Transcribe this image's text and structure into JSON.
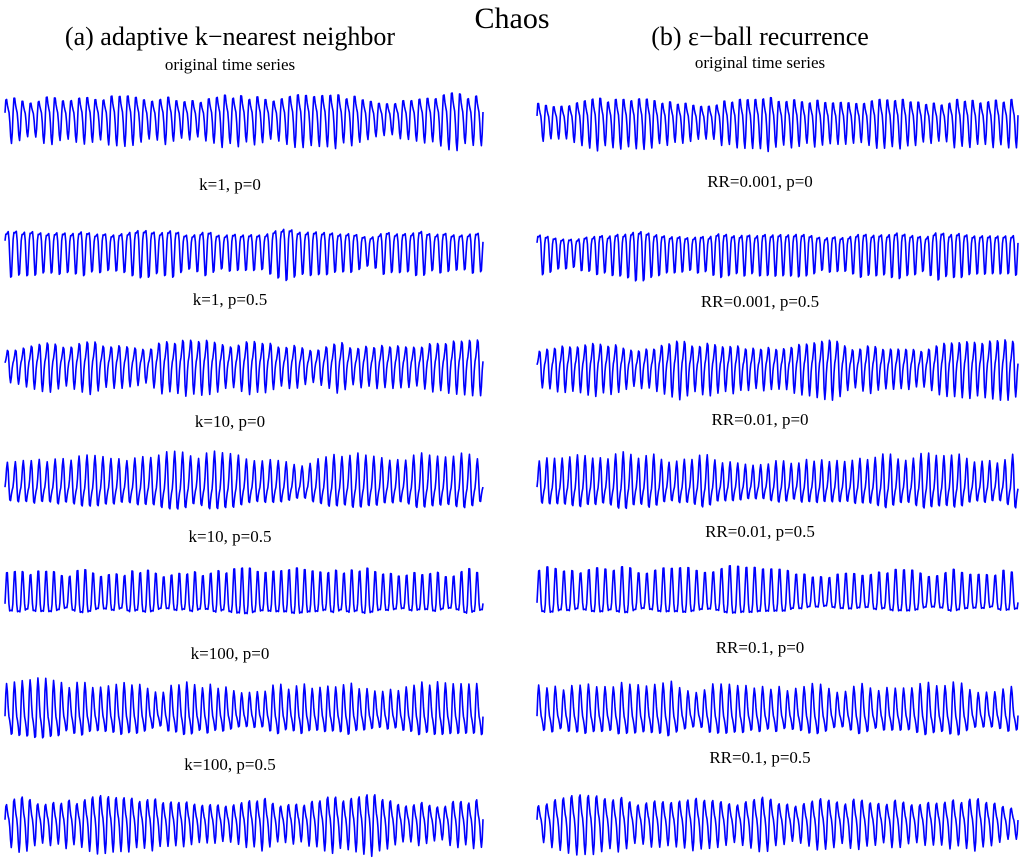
{
  "figure": {
    "title": "Chaos",
    "series_color": "#0000ff"
  },
  "columns": [
    {
      "title": "(a) adaptive k−nearest neighbor",
      "panel_labels": [
        "original time series",
        "k=1, p=0",
        "k=1, p=0.5",
        "k=10, p=0",
        "k=10, p=0.5",
        "k=100, p=0",
        "k=100, p=0.5"
      ]
    },
    {
      "title": "(b) ε−ball recurrence",
      "panel_labels": [
        "original time series",
        "RR=0.001, p=0",
        "RR=0.001, p=0.5",
        "RR=0.01, p=0",
        "RR=0.01, p=0.5",
        "RR=0.1, p=0",
        "RR=0.1, p=0.5"
      ]
    }
  ],
  "chart_data": {
    "type": "line",
    "title": "Chaos",
    "panels_per_column": 7,
    "axes_visible": false,
    "grid": false,
    "series_color": "#0000ff",
    "series": [
      {
        "column": 0,
        "label": "original time series"
      },
      {
        "column": 0,
        "label": "k=1, p=0"
      },
      {
        "column": 0,
        "label": "k=1, p=0.5"
      },
      {
        "column": 0,
        "label": "k=10, p=0"
      },
      {
        "column": 0,
        "label": "k=10, p=0.5"
      },
      {
        "column": 0,
        "label": "k=100, p=0"
      },
      {
        "column": 0,
        "label": "k=100, p=0.5"
      },
      {
        "column": 1,
        "label": "original time series"
      },
      {
        "column": 1,
        "label": "RR=0.001, p=0"
      },
      {
        "column": 1,
        "label": "RR=0.001, p=0.5"
      },
      {
        "column": 1,
        "label": "RR=0.01, p=0"
      },
      {
        "column": 1,
        "label": "RR=0.01, p=0.5"
      },
      {
        "column": 1,
        "label": "RR=0.1, p=0"
      },
      {
        "column": 1,
        "label": "RR=0.1, p=0.5"
      }
    ]
  }
}
